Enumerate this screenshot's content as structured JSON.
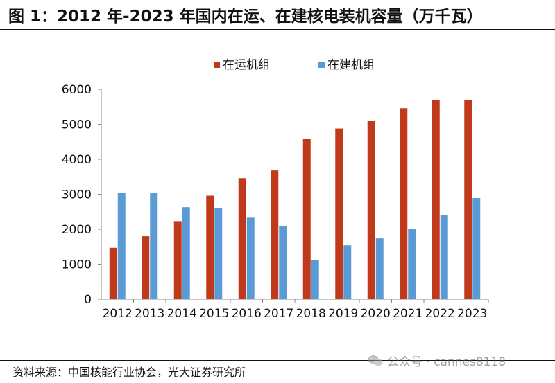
{
  "title": "图 1：2012 年-2023 年国内在运、在建核电装机容量（万千瓦）",
  "source": "资料来源：中国核能行业协会，光大证券研究所",
  "watermark": {
    "text": "公众号 · cannes8118",
    "icon": "wechat-icon"
  },
  "colors": {
    "operating": "#C0391B",
    "construction": "#5B9BD5",
    "axis": "#888888"
  },
  "chart_data": {
    "type": "bar",
    "title": "",
    "xlabel": "",
    "ylabel": "",
    "ylim": [
      0,
      6000
    ],
    "yticks": [
      0,
      1000,
      2000,
      3000,
      4000,
      5000,
      6000
    ],
    "grid": false,
    "legend_position": "top-center",
    "categories": [
      "2012",
      "2013",
      "2014",
      "2015",
      "2016",
      "2017",
      "2018",
      "2019",
      "2020",
      "2021",
      "2022",
      "2023"
    ],
    "series": [
      {
        "name": "在运机组",
        "color": "#C0391B",
        "values": [
          1470,
          1800,
          2230,
          2960,
          3460,
          3680,
          4590,
          4880,
          5100,
          5460,
          5700,
          5700
        ]
      },
      {
        "name": "在建机组",
        "color": "#5B9BD5",
        "values": [
          3050,
          3050,
          2630,
          2600,
          2330,
          2100,
          1110,
          1540,
          1740,
          2000,
          2400,
          2890
        ]
      }
    ]
  }
}
